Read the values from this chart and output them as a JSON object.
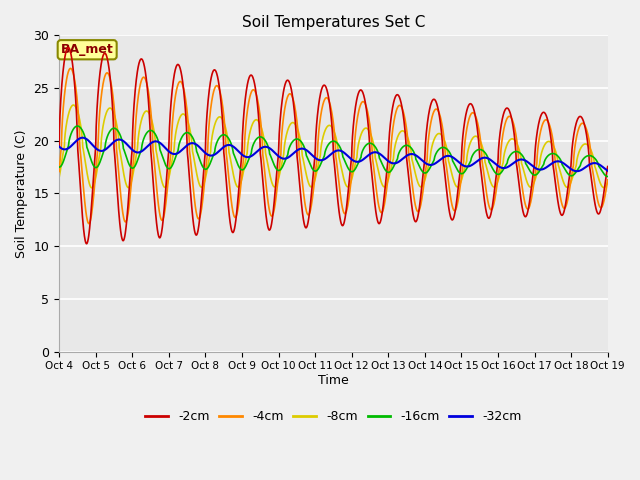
{
  "title": "Soil Temperatures Set C",
  "xlabel": "Time",
  "ylabel": "Soil Temperature (C)",
  "ylim": [
    0,
    30
  ],
  "yticks": [
    0,
    5,
    10,
    15,
    20,
    25,
    30
  ],
  "plot_bg": "#e8e8e8",
  "fig_bg": "#f0f0f0",
  "line_colors": {
    "2cm": "#cc0000",
    "4cm": "#ff8800",
    "8cm": "#ddcc00",
    "16cm": "#00bb00",
    "32cm": "#0000dd"
  },
  "legend_label": "BA_met",
  "legend_label_color": "#8B0000",
  "legend_label_bg": "#ffff99",
  "legend_label_edge": "#888800",
  "n_points": 2000,
  "days": 15,
  "start_day": 4,
  "grid_color": "#ffffff",
  "lw": 1.2
}
